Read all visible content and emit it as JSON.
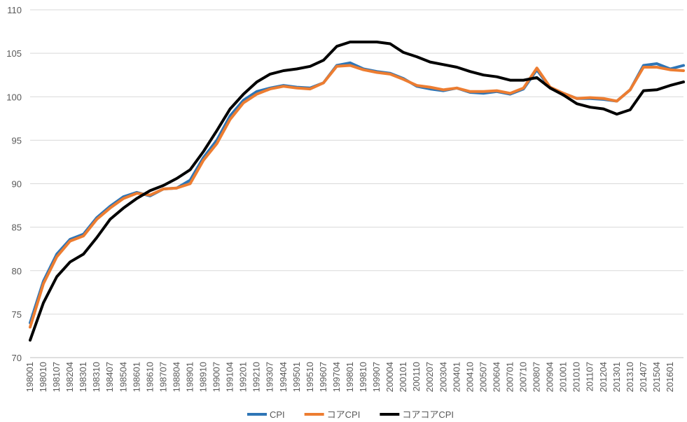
{
  "chart_data": {
    "type": "line",
    "title": "",
    "xlabel": "",
    "ylabel": "",
    "ylim": [
      70,
      110
    ],
    "yticks": [
      70,
      75,
      80,
      85,
      90,
      95,
      100,
      105,
      110
    ],
    "grid": true,
    "legend_position": "bottom",
    "x_tick_labels": [
      "198001",
      "198010",
      "198107",
      "198204",
      "198301",
      "198310",
      "198407",
      "198504",
      "198601",
      "198610",
      "198707",
      "198804",
      "198901",
      "198910",
      "199007",
      "199104",
      "199201",
      "199210",
      "199307",
      "199404",
      "199501",
      "199510",
      "199607",
      "199704",
      "199801",
      "199810",
      "199907",
      "200004",
      "200101",
      "200110",
      "200207",
      "200304",
      "200401",
      "200410",
      "200507",
      "200604",
      "200701",
      "200710",
      "200807",
      "200904",
      "201001",
      "201010",
      "201107",
      "201204",
      "201301",
      "201310",
      "201407",
      "201504",
      "201601"
    ],
    "x": [
      "1980-01",
      "1980-10",
      "1981-07",
      "1982-04",
      "1983-01",
      "1983-10",
      "1984-07",
      "1985-04",
      "1986-01",
      "1986-10",
      "1987-07",
      "1988-04",
      "1989-01",
      "1989-10",
      "1990-07",
      "1991-04",
      "1992-01",
      "1992-10",
      "1993-07",
      "1994-04",
      "1995-01",
      "1995-10",
      "1996-07",
      "1997-04",
      "1998-01",
      "1998-10",
      "1999-07",
      "2000-04",
      "2001-01",
      "2001-10",
      "2002-07",
      "2003-04",
      "2004-01",
      "2004-10",
      "2005-07",
      "2006-04",
      "2007-01",
      "2007-10",
      "2008-07",
      "2009-04",
      "2010-01",
      "2010-10",
      "2011-07",
      "2012-04",
      "2013-01",
      "2013-10",
      "2014-07",
      "2015-04",
      "2016-01",
      "2016-10"
    ],
    "series": [
      {
        "name": "CPI",
        "color": "#2E75B6",
        "values": [
          74.0,
          78.8,
          81.9,
          83.6,
          84.2,
          86.1,
          87.4,
          88.5,
          89.0,
          88.6,
          89.4,
          89.5,
          90.4,
          93.0,
          95.0,
          97.8,
          99.6,
          100.6,
          101.0,
          101.3,
          101.1,
          101.0,
          101.6,
          103.6,
          103.9,
          103.2,
          102.9,
          102.7,
          102.1,
          101.2,
          100.9,
          100.7,
          101.0,
          100.5,
          100.4,
          100.6,
          100.3,
          100.9,
          103.1,
          101.0,
          100.4,
          99.8,
          99.8,
          99.7,
          99.5,
          100.8,
          103.6,
          103.8,
          103.2,
          103.6
        ]
      },
      {
        "name": "コアCPI",
        "color": "#ED7D31",
        "values": [
          73.5,
          78.5,
          81.6,
          83.4,
          84.0,
          85.9,
          87.2,
          88.3,
          88.9,
          88.7,
          89.4,
          89.5,
          90.0,
          92.7,
          94.6,
          97.4,
          99.3,
          100.3,
          100.9,
          101.2,
          101.0,
          100.9,
          101.6,
          103.5,
          103.6,
          103.1,
          102.8,
          102.6,
          102.0,
          101.3,
          101.1,
          100.8,
          101.0,
          100.6,
          100.6,
          100.7,
          100.4,
          101.0,
          103.3,
          101.1,
          100.4,
          99.8,
          99.9,
          99.8,
          99.5,
          100.8,
          103.4,
          103.4,
          103.1,
          103.0
        ]
      },
      {
        "name": "コアコアCPI",
        "color": "#000000",
        "values": [
          72.0,
          76.3,
          79.3,
          81.0,
          81.9,
          83.8,
          85.9,
          87.2,
          88.3,
          89.2,
          89.8,
          90.6,
          91.6,
          93.7,
          96.1,
          98.6,
          100.3,
          101.7,
          102.6,
          103.0,
          103.2,
          103.5,
          104.2,
          105.8,
          106.3,
          106.3,
          106.3,
          106.1,
          105.1,
          104.6,
          104.0,
          103.7,
          103.4,
          102.9,
          102.5,
          102.3,
          101.9,
          101.9,
          102.2,
          101.0,
          100.2,
          99.2,
          98.8,
          98.6,
          98.0,
          98.5,
          100.7,
          100.8,
          101.3,
          101.7
        ]
      }
    ]
  }
}
